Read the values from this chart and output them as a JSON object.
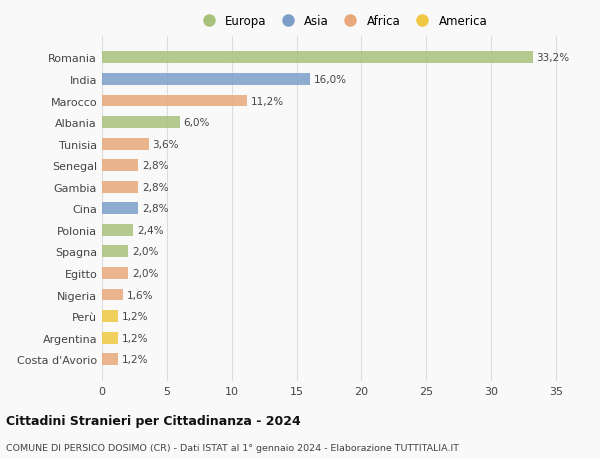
{
  "countries": [
    "Romania",
    "India",
    "Marocco",
    "Albania",
    "Tunisia",
    "Senegal",
    "Gambia",
    "Cina",
    "Polonia",
    "Spagna",
    "Egitto",
    "Nigeria",
    "Perù",
    "Argentina",
    "Costa d'Avorio"
  ],
  "values": [
    33.2,
    16.0,
    11.2,
    6.0,
    3.6,
    2.8,
    2.8,
    2.8,
    2.4,
    2.0,
    2.0,
    1.6,
    1.2,
    1.2,
    1.2
  ],
  "continents": [
    "Europa",
    "Asia",
    "Africa",
    "Europa",
    "Africa",
    "Africa",
    "Africa",
    "Asia",
    "Europa",
    "Europa",
    "Africa",
    "Africa",
    "America",
    "America",
    "Africa"
  ],
  "continent_colors": {
    "Europa": "#a8c17c",
    "Asia": "#7b9ec9",
    "Africa": "#e8a87c",
    "America": "#f0c842"
  },
  "legend_order": [
    "Europa",
    "Asia",
    "Africa",
    "America"
  ],
  "title": "Cittadini Stranieri per Cittadinanza - 2024",
  "subtitle": "COMUNE DI PERSICO DOSIMO (CR) - Dati ISTAT al 1° gennaio 2024 - Elaborazione TUTTITALIA.IT",
  "xlim": [
    0,
    37
  ],
  "xticks": [
    0,
    5,
    10,
    15,
    20,
    25,
    30,
    35
  ],
  "background_color": "#f9f9f9",
  "grid_color": "#dddddd",
  "bar_height": 0.55
}
